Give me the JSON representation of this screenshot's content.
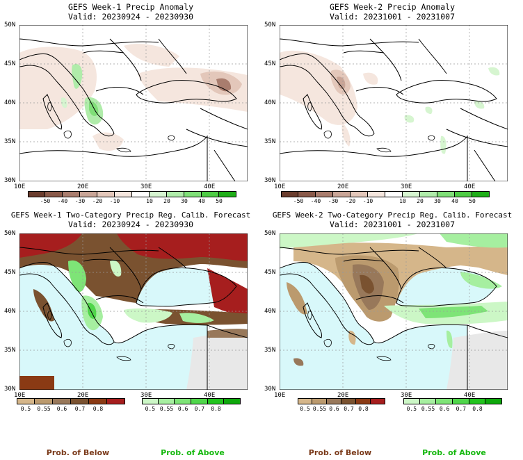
{
  "panels": [
    {
      "title": "GEFS Week-1 Precip Anomaly",
      "valid": "Valid: 20230924 - 20230930",
      "kind": "anomaly"
    },
    {
      "title": "GEFS Week-2 Precip Anomaly",
      "valid": "Valid: 20231001 - 20231007",
      "kind": "anomaly"
    },
    {
      "title": "GEFS Week-1 Two-Category Precip Reg. Calib. Forecast",
      "valid": "Valid: 20230924 - 20230930",
      "kind": "probability"
    },
    {
      "title": "GEFS Week-2 Two-Category Precip Reg. Calib. Forecast",
      "valid": "Valid: 20231001 - 20231007",
      "kind": "probability"
    }
  ],
  "axes": {
    "lat_labels": [
      "50N",
      "45N",
      "40N",
      "35N",
      "30N"
    ],
    "lon_labels": [
      "10E",
      "20E",
      "30E",
      "40E"
    ]
  },
  "anomaly_colorbar": {
    "ticks": [
      "-50",
      "-40",
      "-30",
      "-20",
      "-10",
      "10",
      "20",
      "30",
      "40",
      "50"
    ],
    "colors": [
      "#6b3d2e",
      "#8a5a4a",
      "#a97d6e",
      "#c9a597",
      "#e3c7ba",
      "#f5e6de",
      "#ffffff",
      "#d6f5d0",
      "#b0ecaa",
      "#80df78",
      "#4fcc45",
      "#1fae18"
    ]
  },
  "prob_colorbar_below": {
    "ticks": [
      "0.5",
      "0.55",
      "0.6",
      "0.7",
      "0.8"
    ],
    "colors": [
      "#d5b68a",
      "#bb9a6e",
      "#98785a",
      "#7a5230",
      "#8a3a14",
      "#a61e1e"
    ]
  },
  "prob_colorbar_above": {
    "ticks": [
      "0.5",
      "0.55",
      "0.6",
      "0.7",
      "0.8"
    ],
    "colors": [
      "#ccf7c6",
      "#a6efa0",
      "#7ee477",
      "#4fd64a",
      "#22c41e",
      "#0ea80c"
    ]
  },
  "legend": {
    "below_label": "Prob. of Below",
    "above_label": "Prob. of Above",
    "below_color": "#7a3a1a",
    "above_color": "#16b80f"
  },
  "colors": {
    "sea": "#d8f8fa",
    "no_data": "#e8e8e8",
    "land": "#ffffff"
  }
}
